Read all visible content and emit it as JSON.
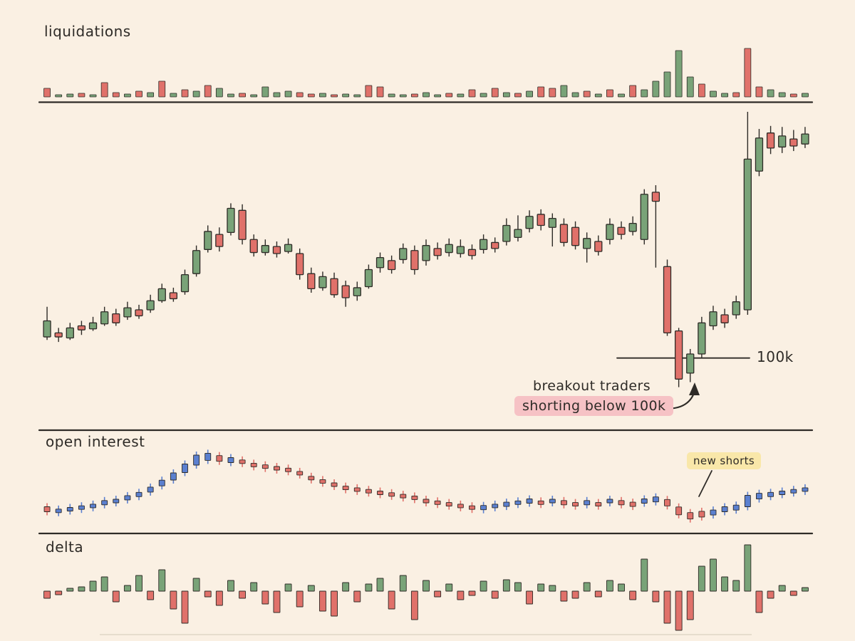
{
  "colors": {
    "background": "#faf0e3",
    "ink": "#2e2b27",
    "green": "#79a378",
    "red": "#e0716a",
    "blue": "#5b80d0",
    "pink_highlight": "#f6c2c5",
    "yellow_highlight": "#f9e7a9",
    "faint_rule": "#e6ddcd"
  },
  "chart_data": [
    {
      "id": "liquidations",
      "type": "bar",
      "title": "liquidations",
      "values": [
        12,
        3,
        4,
        5,
        3,
        20,
        6,
        4,
        8,
        6,
        22,
        5,
        10,
        8,
        16,
        12,
        4,
        5,
        3,
        14,
        6,
        8,
        6,
        4,
        5,
        3,
        4,
        3,
        16,
        14,
        4,
        3,
        4,
        6,
        3,
        5,
        4,
        10,
        5,
        12,
        6,
        5,
        8,
        14,
        12,
        16,
        6,
        8,
        4,
        10,
        4,
        16,
        10,
        22,
        35,
        65,
        28,
        18,
        8,
        5,
        6,
        68,
        14,
        10,
        6,
        4,
        5
      ],
      "bar_colors": "rggrg rrgrg rgrgr ggrgg ggrrg rggrr ggrgg rgrgr grgrr ggrgr grggg ggrgg rrrgg rg"
    },
    {
      "id": "price",
      "type": "candlestick",
      "unit": "k",
      "ylim": [
        97,
        125
      ],
      "levels": [
        {
          "label": "100k",
          "price": 100
        }
      ],
      "annotations": [
        {
          "text": "breakout traders"
        },
        {
          "text": "shorting below 100k",
          "highlight": "pink"
        }
      ],
      "ohlc": [
        [
          102.1,
          105.1,
          101.8,
          103.7
        ],
        [
          102.5,
          103.0,
          101.6,
          102.1
        ],
        [
          102.0,
          103.5,
          101.8,
          103.0
        ],
        [
          103.2,
          103.7,
          102.3,
          102.8
        ],
        [
          102.9,
          104.1,
          102.7,
          103.5
        ],
        [
          103.4,
          105.1,
          103.2,
          104.6
        ],
        [
          104.4,
          104.9,
          103.2,
          103.5
        ],
        [
          104.1,
          105.6,
          103.8,
          105.0
        ],
        [
          104.8,
          105.3,
          103.9,
          104.2
        ],
        [
          104.8,
          106.3,
          104.5,
          105.7
        ],
        [
          105.7,
          107.4,
          105.5,
          106.9
        ],
        [
          106.5,
          107.0,
          105.6,
          105.9
        ],
        [
          106.6,
          108.8,
          106.3,
          108.3
        ],
        [
          108.4,
          111.2,
          108.1,
          110.7
        ],
        [
          110.8,
          113.2,
          110.5,
          112.6
        ],
        [
          112.3,
          113.0,
          110.6,
          111.1
        ],
        [
          112.5,
          115.4,
          112.2,
          114.9
        ],
        [
          114.7,
          115.3,
          111.3,
          111.8
        ],
        [
          111.8,
          112.3,
          110.1,
          110.5
        ],
        [
          110.5,
          111.8,
          110.2,
          111.2
        ],
        [
          111.1,
          111.6,
          110.0,
          110.4
        ],
        [
          110.6,
          111.9,
          110.4,
          111.3
        ],
        [
          110.4,
          110.9,
          107.8,
          108.3
        ],
        [
          108.4,
          109.0,
          106.5,
          106.9
        ],
        [
          107.0,
          108.6,
          106.7,
          108.1
        ],
        [
          107.9,
          108.5,
          106.0,
          106.3
        ],
        [
          107.2,
          107.7,
          105.1,
          106.0
        ],
        [
          106.2,
          107.6,
          105.7,
          107.0
        ],
        [
          107.1,
          109.3,
          106.9,
          108.8
        ],
        [
          109.0,
          110.5,
          108.5,
          110.0
        ],
        [
          109.7,
          110.2,
          108.4,
          108.8
        ],
        [
          109.8,
          111.4,
          109.4,
          110.9
        ],
        [
          110.7,
          111.2,
          108.3,
          108.8
        ],
        [
          109.7,
          111.8,
          109.2,
          111.2
        ],
        [
          110.9,
          111.5,
          109.8,
          110.2
        ],
        [
          110.5,
          111.9,
          110.1,
          111.3
        ],
        [
          110.4,
          111.8,
          110.0,
          111.1
        ],
        [
          110.8,
          111.3,
          109.8,
          110.2
        ],
        [
          110.8,
          112.3,
          110.4,
          111.8
        ],
        [
          111.5,
          112.0,
          110.5,
          110.9
        ],
        [
          111.6,
          113.9,
          111.2,
          113.2
        ],
        [
          112.0,
          114.2,
          111.6,
          112.8
        ],
        [
          112.9,
          114.7,
          112.5,
          114.1
        ],
        [
          114.3,
          114.8,
          112.7,
          113.2
        ],
        [
          113.0,
          114.4,
          111.1,
          113.9
        ],
        [
          113.3,
          113.9,
          111.1,
          111.5
        ],
        [
          113.0,
          113.6,
          110.8,
          111.2
        ],
        [
          110.9,
          112.5,
          109.5,
          111.9
        ],
        [
          111.6,
          112.2,
          110.2,
          110.6
        ],
        [
          111.8,
          113.9,
          111.3,
          113.3
        ],
        [
          113.0,
          113.6,
          111.8,
          112.3
        ],
        [
          112.6,
          114.1,
          112.2,
          113.4
        ],
        [
          111.8,
          116.8,
          111.3,
          116.3
        ],
        [
          116.5,
          117.2,
          109.0,
          115.6
        ],
        [
          109.1,
          109.8,
          102.2,
          102.5
        ],
        [
          102.7,
          103.0,
          97.1,
          97.9
        ],
        [
          98.5,
          100.9,
          97.6,
          100.4
        ],
        [
          100.4,
          104.1,
          100.0,
          103.5
        ],
        [
          103.2,
          105.2,
          102.8,
          104.6
        ],
        [
          104.3,
          104.9,
          103.0,
          103.5
        ],
        [
          104.3,
          106.2,
          103.9,
          105.6
        ],
        [
          104.8,
          124.5,
          104.3,
          119.8
        ],
        [
          118.6,
          122.8,
          118.1,
          121.9
        ],
        [
          122.4,
          123.1,
          120.3,
          120.9
        ],
        [
          121.0,
          123.0,
          120.4,
          122.1
        ],
        [
          121.8,
          122.7,
          120.6,
          121.1
        ],
        [
          121.3,
          123.0,
          120.9,
          122.3
        ]
      ]
    },
    {
      "id": "open_interest",
      "type": "line",
      "title": "open interest",
      "values": [
        20,
        18,
        20,
        22,
        24,
        28,
        30,
        34,
        38,
        44,
        52,
        60,
        70,
        80,
        84,
        82,
        80,
        78,
        74,
        72,
        70,
        68,
        64,
        58,
        54,
        50,
        46,
        44,
        42,
        40,
        38,
        36,
        34,
        30,
        28,
        26,
        24,
        22,
        22,
        24,
        26,
        28,
        30,
        28,
        30,
        28,
        26,
        28,
        26,
        30,
        28,
        26,
        30,
        32,
        28,
        18,
        12,
        14,
        16,
        20,
        22,
        30,
        36,
        38,
        40,
        42,
        44
      ],
      "point_colors": "rbbbb bbbbb bbbbb rbrrr rrrrr rrrrr rrrrr rrrbb bbbrb rrbrb rrbbr rrrbb bbbbb bb",
      "marker_heights": [
        7,
        5,
        5,
        5,
        5,
        6,
        5,
        6,
        6,
        7,
        8,
        10,
        12,
        14,
        10,
        8,
        7,
        5,
        5,
        5,
        5,
        5,
        5,
        5,
        5,
        5,
        5,
        5,
        5,
        5,
        5,
        5,
        5,
        5,
        5,
        5,
        5,
        5,
        6,
        5,
        6,
        5,
        6,
        5,
        5,
        6,
        5,
        6,
        5,
        5,
        6,
        6,
        6,
        7,
        9,
        11,
        9,
        8,
        7,
        7,
        7,
        16,
        8,
        6,
        5,
        5,
        5
      ],
      "annotations": [
        {
          "text": "new shorts",
          "highlight": "yellow"
        }
      ]
    },
    {
      "id": "delta",
      "type": "bar",
      "title": "delta",
      "values": [
        -10,
        -5,
        4,
        6,
        14,
        20,
        -15,
        8,
        22,
        -12,
        30,
        -25,
        -45,
        18,
        -8,
        -20,
        15,
        -10,
        12,
        -18,
        -30,
        10,
        -22,
        8,
        -28,
        -35,
        12,
        -15,
        10,
        18,
        -25,
        22,
        -40,
        15,
        -8,
        10,
        -12,
        -6,
        14,
        -10,
        16,
        12,
        -18,
        10,
        8,
        -14,
        -10,
        12,
        -8,
        15,
        10,
        -12,
        45,
        -15,
        -45,
        -55,
        -40,
        35,
        45,
        20,
        15,
        65,
        -30,
        -10,
        8,
        -6,
        5
      ]
    }
  ]
}
